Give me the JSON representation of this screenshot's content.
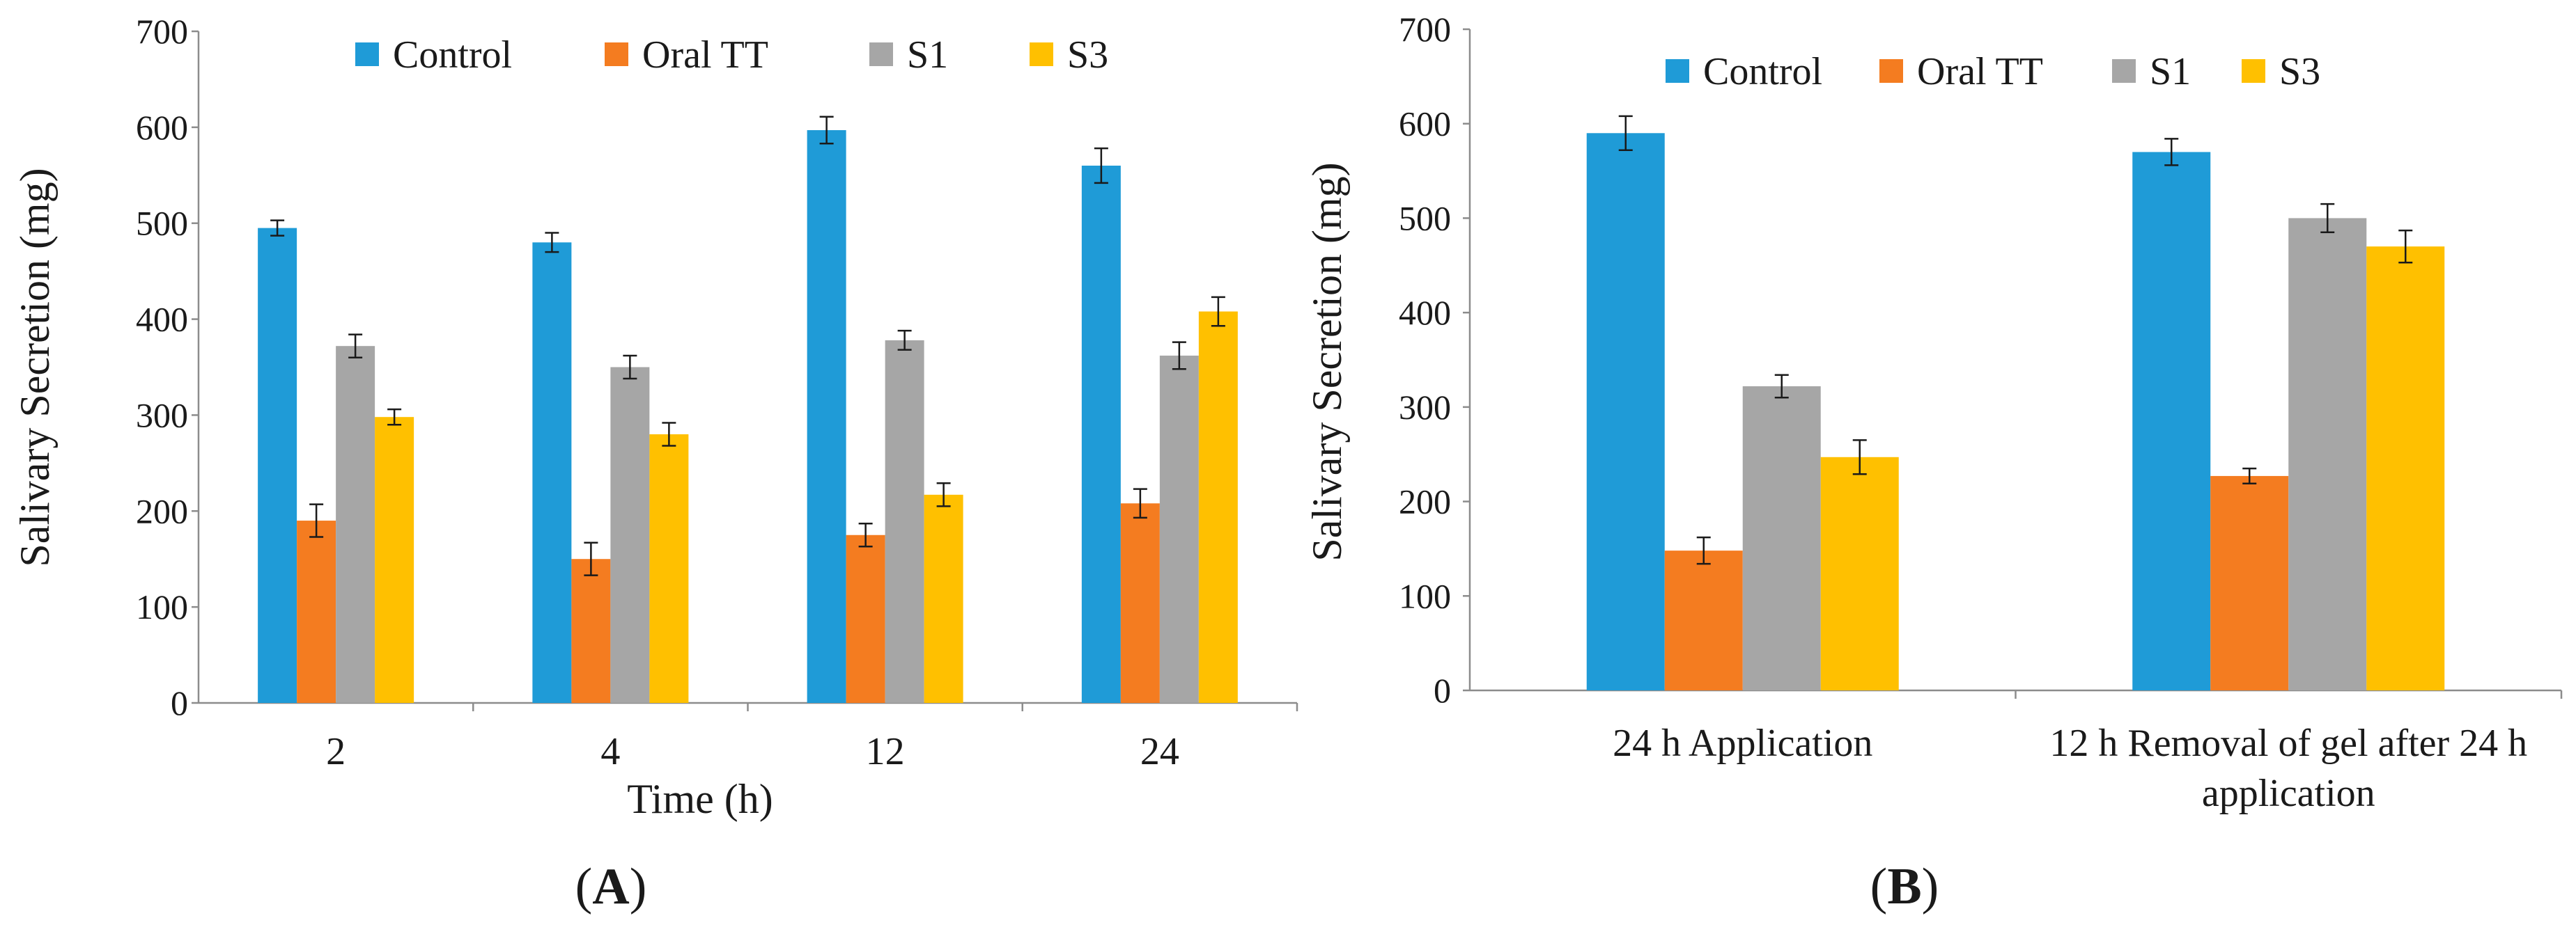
{
  "chart_data": [
    {
      "type": "bar",
      "panel_label": "A",
      "categories": [
        "2",
        "4",
        "12",
        "24"
      ],
      "xlabel": "Time (h)",
      "ylabel": "Salivary Secretion (mg)",
      "ylim": [
        0,
        700
      ],
      "yticks": [
        0,
        100,
        200,
        300,
        400,
        500,
        600,
        700
      ],
      "grid": false,
      "legend": "top",
      "series": [
        {
          "name": "Control",
          "color": "#1f9bd7",
          "values": [
            495,
            480,
            597,
            560
          ],
          "errors": [
            8,
            10,
            14,
            18
          ]
        },
        {
          "name": "Oral TT",
          "color": "#f47c20",
          "values": [
            190,
            150,
            175,
            208
          ],
          "errors": [
            17,
            17,
            12,
            15
          ]
        },
        {
          "name": "S1",
          "color": "#a6a6a6",
          "values": [
            372,
            350,
            378,
            362
          ],
          "errors": [
            12,
            12,
            10,
            14
          ]
        },
        {
          "name": "S3",
          "color": "#ffc000",
          "values": [
            298,
            280,
            217,
            408
          ],
          "errors": [
            8,
            12,
            12,
            15
          ]
        }
      ]
    },
    {
      "type": "bar",
      "panel_label": "B",
      "categories": [
        "24 h Application",
        "12 h Removal of gel after 24 h application"
      ],
      "xlabel": "",
      "ylabel": "Salivary Secretion (mg)",
      "ylim": [
        0,
        700
      ],
      "yticks": [
        0,
        100,
        200,
        300,
        400,
        500,
        600,
        700
      ],
      "grid": false,
      "legend": "top",
      "series": [
        {
          "name": "Control",
          "color": "#1f9bd7",
          "values": [
            590,
            570
          ],
          "errors": [
            18,
            14
          ]
        },
        {
          "name": "Oral TT",
          "color": "#f47c20",
          "values": [
            148,
            227
          ],
          "errors": [
            14,
            8
          ]
        },
        {
          "name": "S1",
          "color": "#a6a6a6",
          "values": [
            322,
            500
          ],
          "errors": [
            12,
            15
          ]
        },
        {
          "name": "S3",
          "color": "#ffc000",
          "values": [
            247,
            470
          ],
          "errors": [
            18,
            17
          ]
        }
      ]
    }
  ]
}
